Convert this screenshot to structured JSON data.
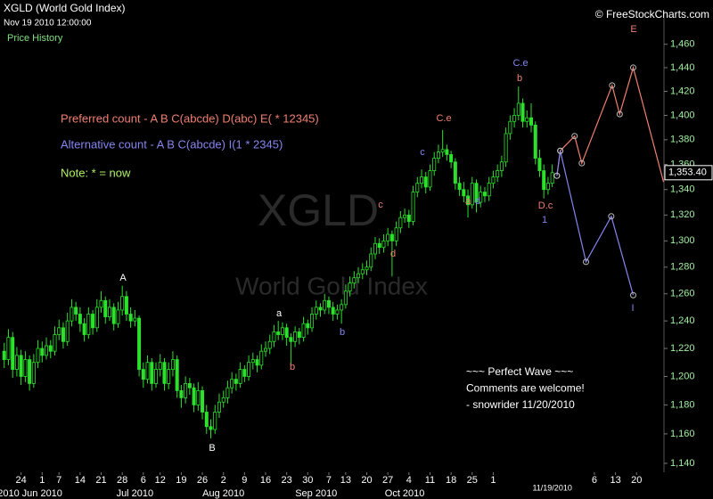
{
  "chart_data": {
    "type": "candlestick",
    "title": "XGLD (World Gold Index)",
    "subtitle": "Nov 19 2010 12:00:00",
    "panel_label": "Price History",
    "source": "© FreeStockCharts.com",
    "watermark": [
      "XGLD",
      "World Gold Index"
    ],
    "log": true,
    "color": "#2ce02c",
    "ylim": [
      1134,
      1483
    ],
    "yticks": [
      {
        "value": 1140,
        "label": "1,140"
      },
      {
        "value": 1160,
        "label": "1,160"
      },
      {
        "value": 1180,
        "label": "1,180"
      },
      {
        "value": 1200,
        "label": "1,200"
      },
      {
        "value": 1220,
        "label": "1,220"
      },
      {
        "value": 1240,
        "label": "1,240"
      },
      {
        "value": 1260,
        "label": "1,260"
      },
      {
        "value": 1280,
        "label": "1,280"
      },
      {
        "value": 1300,
        "label": "1,300"
      },
      {
        "value": 1320,
        "label": "1,320"
      },
      {
        "value": 1340,
        "label": "1,340"
      },
      {
        "value": 1360,
        "label": "1,360"
      },
      {
        "value": 1380,
        "label": "1,380"
      },
      {
        "value": 1400,
        "label": "1,400"
      },
      {
        "value": 1420,
        "label": "1,420"
      },
      {
        "value": 1440,
        "label": "1,440"
      },
      {
        "value": 1460,
        "label": "1,460"
      }
    ],
    "xlim": [
      -5,
      152.5
    ],
    "xticks": [
      {
        "value": 0,
        "label": "24"
      },
      {
        "value": 5,
        "label": "1"
      },
      {
        "value": 9,
        "label": "7"
      },
      {
        "value": 14,
        "label": "14"
      },
      {
        "value": 19,
        "label": "21"
      },
      {
        "value": 24,
        "label": "28"
      },
      {
        "value": 29,
        "label": "6"
      },
      {
        "value": 33,
        "label": "12"
      },
      {
        "value": 38,
        "label": "19"
      },
      {
        "value": 43,
        "label": "26"
      },
      {
        "value": 48,
        "label": "2"
      },
      {
        "value": 53,
        "label": "9"
      },
      {
        "value": 58,
        "label": "16"
      },
      {
        "value": 63,
        "label": "23"
      },
      {
        "value": 68,
        "label": "30"
      },
      {
        "value": 73,
        "label": "7"
      },
      {
        "value": 77,
        "label": "13"
      },
      {
        "value": 82,
        "label": "20"
      },
      {
        "value": 87,
        "label": "27"
      },
      {
        "value": 92,
        "label": "4"
      },
      {
        "value": 97,
        "label": "11"
      },
      {
        "value": 102,
        "label": "18"
      },
      {
        "value": 107,
        "label": "25"
      },
      {
        "value": 112,
        "label": "1"
      },
      {
        "value": 136,
        "label": "6"
      },
      {
        "value": 141,
        "label": "13"
      },
      {
        "value": 146,
        "label": "20"
      }
    ],
    "month_ticks": [
      {
        "value": -3,
        "label": "2010"
      },
      {
        "value": 5,
        "label": "Jun 2010"
      },
      {
        "value": 27,
        "label": "Jul 2010"
      },
      {
        "value": 48,
        "label": "Aug 2010"
      },
      {
        "value": 70,
        "label": "Sep 2010"
      },
      {
        "value": 91,
        "label": "Oct 2010"
      },
      {
        "value": 126,
        "label": "11/19/2010"
      }
    ],
    "x": [
      -4,
      -3,
      -2,
      -1,
      0,
      1,
      2,
      3,
      4,
      5,
      6,
      7,
      8,
      9,
      10,
      11,
      12,
      13,
      14,
      15,
      16,
      17,
      18,
      19,
      20,
      21,
      22,
      23,
      24,
      25,
      26,
      27,
      28,
      29,
      30,
      31,
      32,
      33,
      34,
      35,
      36,
      37,
      38,
      39,
      40,
      41,
      42,
      43,
      44,
      45,
      46,
      47,
      48,
      49,
      50,
      51,
      52,
      53,
      54,
      55,
      56,
      57,
      58,
      59,
      60,
      61,
      62,
      63,
      64,
      65,
      66,
      67,
      68,
      69,
      70,
      71,
      72,
      73,
      74,
      75,
      76,
      77,
      78,
      79,
      80,
      81,
      82,
      83,
      84,
      85,
      86,
      87,
      88,
      89,
      90,
      91,
      92,
      93,
      94,
      95,
      96,
      97,
      98,
      99,
      100,
      101,
      102,
      103,
      104,
      105,
      106,
      107,
      108,
      109,
      110,
      111,
      112,
      113,
      114,
      115,
      116,
      117,
      118,
      119,
      120,
      121,
      122,
      123,
      124,
      125,
      126
    ],
    "ohlc": [
      [
        1218,
        1224,
        1206,
        1212
      ],
      [
        1212,
        1234,
        1208,
        1228
      ],
      [
        1228,
        1232,
        1199,
        1205
      ],
      [
        1205,
        1221,
        1200,
        1215
      ],
      [
        1215,
        1219,
        1194,
        1200
      ],
      [
        1200,
        1218,
        1196,
        1212
      ],
      [
        1212,
        1215,
        1190,
        1195
      ],
      [
        1195,
        1216,
        1192,
        1210
      ],
      [
        1210,
        1226,
        1206,
        1220
      ],
      [
        1220,
        1225,
        1210,
        1215
      ],
      [
        1215,
        1228,
        1212,
        1222
      ],
      [
        1222,
        1226,
        1213,
        1218
      ],
      [
        1218,
        1236,
        1215,
        1230
      ],
      [
        1230,
        1241,
        1226,
        1235
      ],
      [
        1235,
        1239,
        1220,
        1225
      ],
      [
        1225,
        1246,
        1222,
        1240
      ],
      [
        1240,
        1256,
        1236,
        1250
      ],
      [
        1250,
        1254,
        1240,
        1245
      ],
      [
        1245,
        1250,
        1232,
        1238
      ],
      [
        1238,
        1242,
        1225,
        1230
      ],
      [
        1230,
        1250,
        1227,
        1245
      ],
      [
        1245,
        1248,
        1230,
        1235
      ],
      [
        1235,
        1256,
        1232,
        1250
      ],
      [
        1250,
        1262,
        1246,
        1255
      ],
      [
        1255,
        1258,
        1238,
        1243
      ],
      [
        1243,
        1256,
        1240,
        1250
      ],
      [
        1250,
        1253,
        1233,
        1238
      ],
      [
        1238,
        1254,
        1235,
        1248
      ],
      [
        1248,
        1266,
        1244,
        1258
      ],
      [
        1258,
        1262,
        1240,
        1245
      ],
      [
        1245,
        1250,
        1235,
        1240
      ],
      [
        1240,
        1248,
        1236,
        1242
      ],
      [
        1242,
        1244,
        1200,
        1205
      ],
      [
        1205,
        1210,
        1192,
        1198
      ],
      [
        1198,
        1215,
        1195,
        1210
      ],
      [
        1210,
        1213,
        1190,
        1195
      ],
      [
        1195,
        1210,
        1192,
        1205
      ],
      [
        1205,
        1216,
        1200,
        1210
      ],
      [
        1210,
        1213,
        1190,
        1195
      ],
      [
        1195,
        1210,
        1191,
        1205
      ],
      [
        1205,
        1218,
        1200,
        1212
      ],
      [
        1212,
        1215,
        1185,
        1190
      ],
      [
        1190,
        1194,
        1178,
        1185
      ],
      [
        1185,
        1200,
        1181,
        1195
      ],
      [
        1195,
        1199,
        1187,
        1192
      ],
      [
        1192,
        1195,
        1175,
        1180
      ],
      [
        1180,
        1196,
        1176,
        1190
      ],
      [
        1190,
        1193,
        1170,
        1175
      ],
      [
        1175,
        1180,
        1160,
        1165
      ],
      [
        1165,
        1170,
        1157,
        1163
      ],
      [
        1163,
        1180,
        1160,
        1175
      ],
      [
        1175,
        1188,
        1171,
        1182
      ],
      [
        1182,
        1190,
        1178,
        1185
      ],
      [
        1185,
        1197,
        1181,
        1192
      ],
      [
        1192,
        1203,
        1188,
        1198
      ],
      [
        1198,
        1202,
        1190,
        1195
      ],
      [
        1195,
        1210,
        1192,
        1205
      ],
      [
        1205,
        1208,
        1196,
        1200
      ],
      [
        1200,
        1215,
        1197,
        1210
      ],
      [
        1210,
        1217,
        1205,
        1212
      ],
      [
        1212,
        1215,
        1203,
        1208
      ],
      [
        1208,
        1223,
        1205,
        1218
      ],
      [
        1218,
        1225,
        1214,
        1220
      ],
      [
        1220,
        1230,
        1216,
        1225
      ],
      [
        1225,
        1237,
        1221,
        1232
      ],
      [
        1232,
        1240,
        1226,
        1230
      ],
      [
        1230,
        1239,
        1226,
        1235
      ],
      [
        1235,
        1238,
        1222,
        1228
      ],
      [
        1228,
        1231,
        1208,
        1225
      ],
      [
        1225,
        1236,
        1221,
        1232
      ],
      [
        1232,
        1235,
        1223,
        1228
      ],
      [
        1228,
        1243,
        1225,
        1238
      ],
      [
        1238,
        1241,
        1230,
        1235
      ],
      [
        1235,
        1250,
        1232,
        1245
      ],
      [
        1245,
        1255,
        1241,
        1250
      ],
      [
        1250,
        1253,
        1243,
        1248
      ],
      [
        1248,
        1260,
        1245,
        1255
      ],
      [
        1255,
        1258,
        1245,
        1250
      ],
      [
        1250,
        1254,
        1240,
        1245
      ],
      [
        1245,
        1252,
        1241,
        1248
      ],
      [
        1248,
        1256,
        1238,
        1252
      ],
      [
        1252,
        1267,
        1249,
        1262
      ],
      [
        1262,
        1273,
        1258,
        1268
      ],
      [
        1268,
        1277,
        1264,
        1272
      ],
      [
        1272,
        1280,
        1268,
        1275
      ],
      [
        1275,
        1283,
        1271,
        1278
      ],
      [
        1278,
        1285,
        1274,
        1280
      ],
      [
        1280,
        1295,
        1277,
        1290
      ],
      [
        1290,
        1303,
        1286,
        1298
      ],
      [
        1298,
        1302,
        1290,
        1295
      ],
      [
        1295,
        1305,
        1291,
        1300
      ],
      [
        1300,
        1310,
        1296,
        1305
      ],
      [
        1305,
        1308,
        1273,
        1300
      ],
      [
        1300,
        1315,
        1296,
        1310
      ],
      [
        1310,
        1323,
        1306,
        1318
      ],
      [
        1318,
        1325,
        1314,
        1320
      ],
      [
        1320,
        1324,
        1310,
        1315
      ],
      [
        1315,
        1343,
        1312,
        1338
      ],
      [
        1338,
        1350,
        1334,
        1345
      ],
      [
        1345,
        1356,
        1341,
        1350
      ],
      [
        1350,
        1354,
        1337,
        1342
      ],
      [
        1342,
        1360,
        1339,
        1355
      ],
      [
        1355,
        1370,
        1351,
        1365
      ],
      [
        1365,
        1376,
        1361,
        1370
      ],
      [
        1370,
        1388,
        1366,
        1372
      ],
      [
        1372,
        1376,
        1363,
        1368
      ],
      [
        1368,
        1371,
        1357,
        1362
      ],
      [
        1362,
        1365,
        1340,
        1345
      ],
      [
        1345,
        1350,
        1335,
        1340
      ],
      [
        1340,
        1346,
        1330,
        1335
      ],
      [
        1335,
        1340,
        1318,
        1328
      ],
      [
        1328,
        1350,
        1325,
        1345
      ],
      [
        1345,
        1348,
        1322,
        1330
      ],
      [
        1330,
        1343,
        1326,
        1338
      ],
      [
        1338,
        1342,
        1330,
        1335
      ],
      [
        1335,
        1350,
        1331,
        1345
      ],
      [
        1345,
        1355,
        1341,
        1350
      ],
      [
        1350,
        1360,
        1346,
        1355
      ],
      [
        1355,
        1367,
        1350,
        1362
      ],
      [
        1362,
        1390,
        1358,
        1385
      ],
      [
        1385,
        1400,
        1380,
        1395
      ],
      [
        1395,
        1406,
        1390,
        1400
      ],
      [
        1400,
        1424,
        1396,
        1410
      ],
      [
        1410,
        1414,
        1390,
        1395
      ],
      [
        1395,
        1404,
        1390,
        1398
      ],
      [
        1398,
        1410,
        1386,
        1392
      ],
      [
        1392,
        1395,
        1360,
        1365
      ],
      [
        1365,
        1372,
        1350,
        1355
      ],
      [
        1355,
        1360,
        1333,
        1340
      ],
      [
        1340,
        1350,
        1336,
        1345
      ],
      [
        1345,
        1360,
        1342,
        1353.4
      ]
    ],
    "last_price": {
      "value": 1353.4,
      "label": "1,353.40"
    },
    "series": [
      {
        "color": "#f07f70",
        "x": [
          127.1,
          127.9,
          131.3,
          133.0,
          140.2,
          142.0,
          145.2,
          152.4
        ],
        "values": [
          1351,
          1371,
          1383,
          1361,
          1425,
          1401,
          1440,
          1346
        ]
      },
      {
        "color": "#8585f0",
        "x": [
          127.1,
          127.9,
          134.0,
          140.0,
          145.2
        ],
        "values": [
          1351,
          1371,
          1284,
          1319,
          1259
        ]
      }
    ],
    "notes": [
      {
        "text": "Preferred count -  A B C(abcde) D(abc) E( * 12345)",
        "color": "#f07f70"
      },
      {
        "text": "Alternative count -  A B C(abcde) I(1 * 2345)",
        "color": "#8585f0"
      },
      {
        "text": "Note:  * = now",
        "color": "#b0f060"
      }
    ],
    "comment": [
      "~~~ Perfect Wave ~~~",
      "Comments are welcome!",
      "- snowrider  11/20/2010"
    ],
    "wave_labels": [
      {
        "text": "A",
        "color": "#ffffff"
      },
      {
        "text": "B",
        "color": "#ffffff"
      },
      {
        "text": "a",
        "color": "#ffffff"
      },
      {
        "text": "b",
        "color": "#f07f70"
      },
      {
        "text": "b",
        "color": "#8585f0"
      },
      {
        "text": "c",
        "color": "#f07f70"
      },
      {
        "text": "d",
        "color": "#f07f70"
      },
      {
        "text": "c",
        "color": "#8585f0"
      },
      {
        "text": "C.e",
        "color": "#f07f70"
      },
      {
        "text": "a",
        "color": "#f07f70"
      },
      {
        "text": "d",
        "color": "#8585f0"
      },
      {
        "text": "C.e",
        "color": "#8585f0"
      },
      {
        "text": "b",
        "color": "#f07f70"
      },
      {
        "text": "D.c",
        "color": "#f07f70"
      },
      {
        "text": "1",
        "color": "#8585f0"
      },
      {
        "text": "E",
        "color": "#f07f70"
      },
      {
        "text": "I",
        "color": "#8585f0"
      }
    ]
  }
}
